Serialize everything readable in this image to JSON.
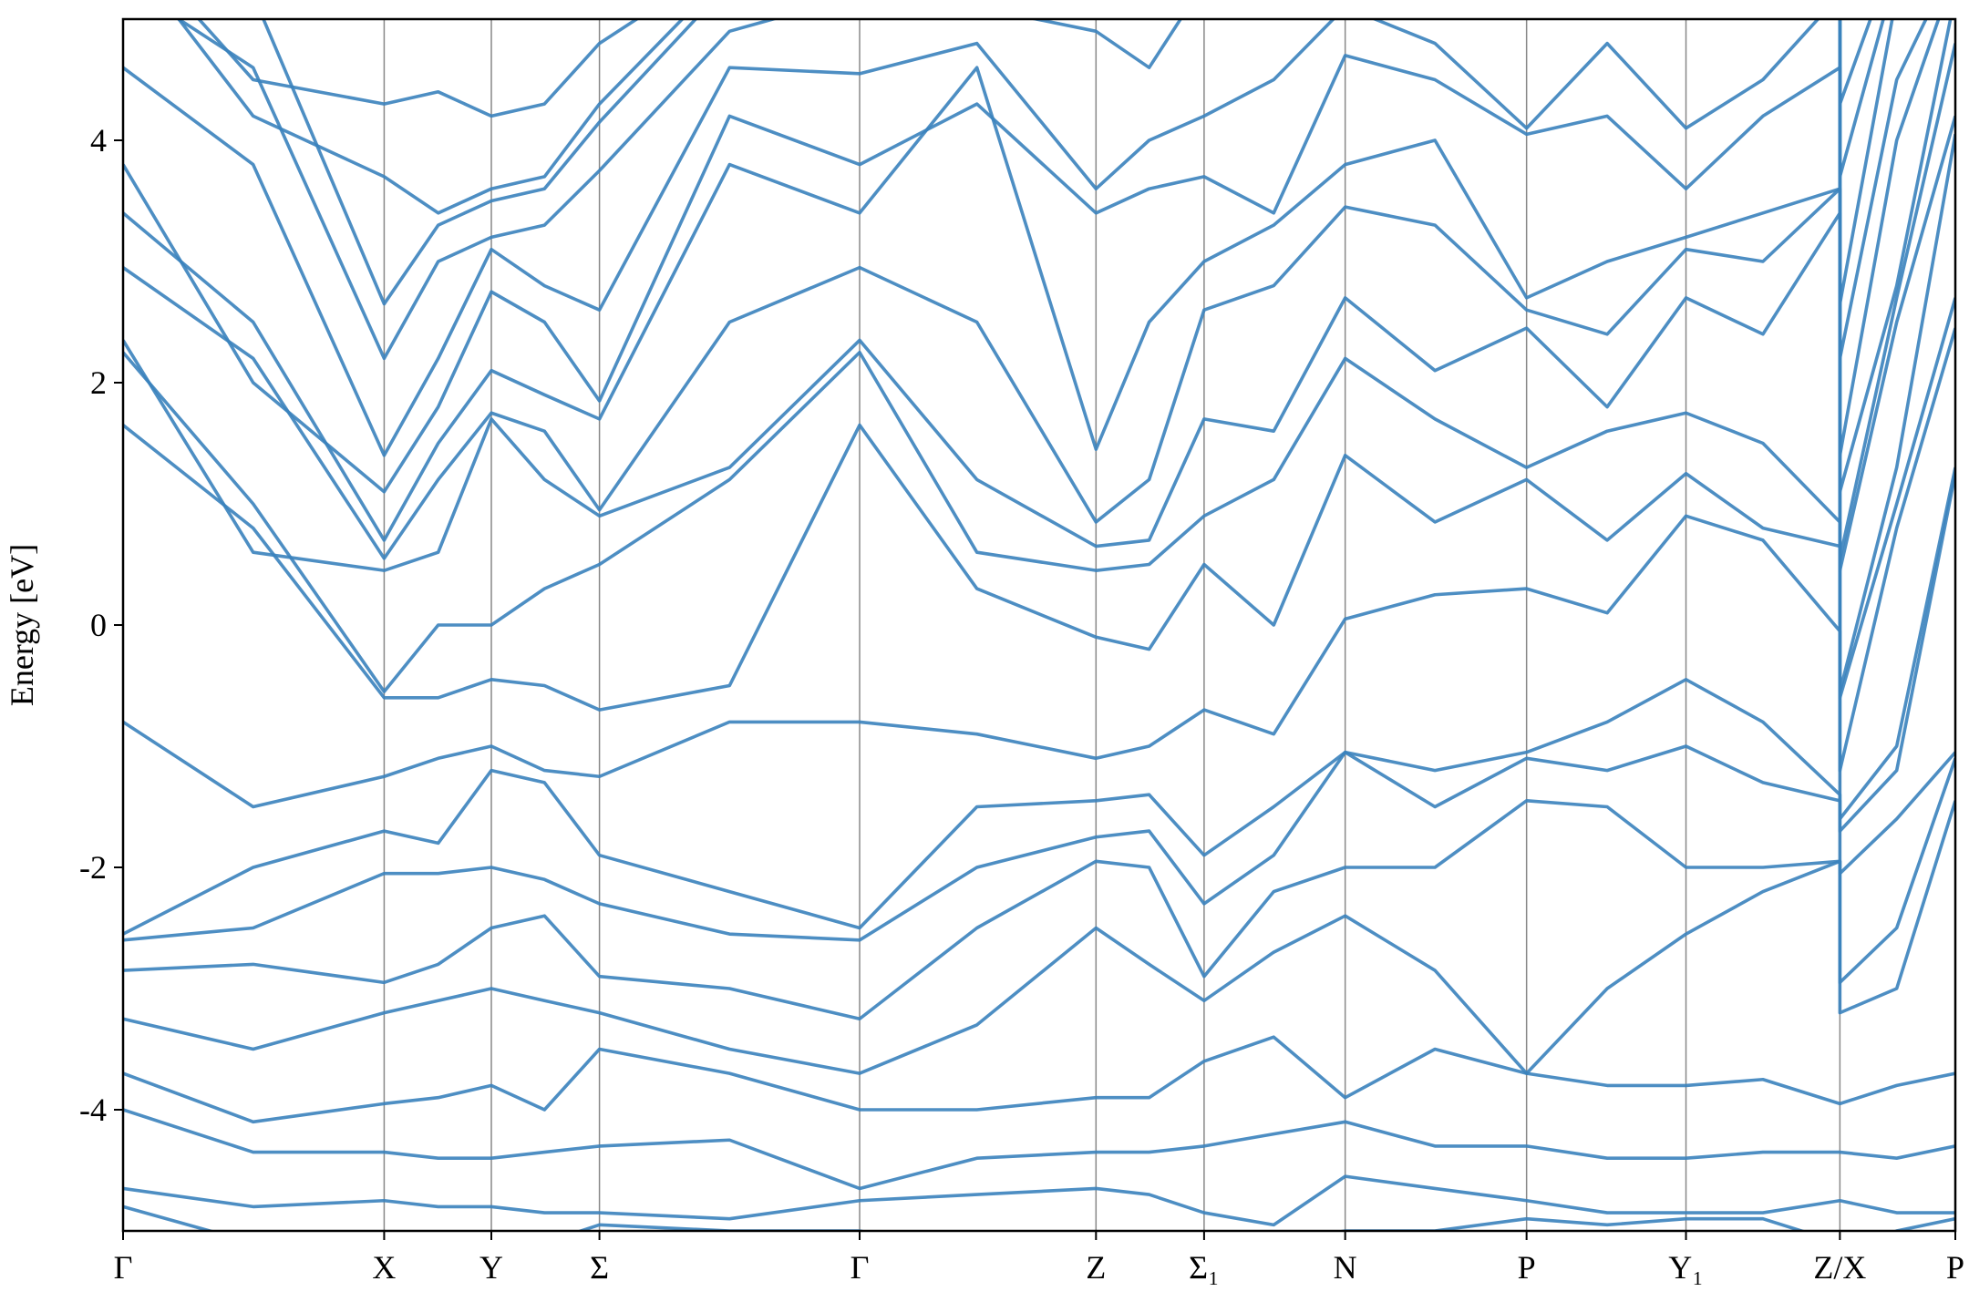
{
  "chart_data": {
    "type": "line",
    "ylabel": "Energy [eV]",
    "color": "#3a82bd",
    "xlim": [
      0,
      1
    ],
    "ylim": [
      -5,
      5
    ],
    "yticks": [
      -4,
      -2,
      0,
      2,
      4
    ],
    "xticks": [
      {
        "value": 0,
        "label": "Γ"
      },
      {
        "value": 0.1425,
        "label": "X"
      },
      {
        "value": 0.201,
        "label": "Y"
      },
      {
        "value": 0.26,
        "label": "Σ"
      },
      {
        "value": 0.402,
        "label": "Γ"
      },
      {
        "value": 0.531,
        "label": "Z"
      },
      {
        "value": 0.59,
        "label": "Σ₁"
      },
      {
        "value": 0.667,
        "label": "N"
      },
      {
        "value": 0.766,
        "label": "P"
      },
      {
        "value": 0.853,
        "label": "Y₁"
      },
      {
        "value": 0.937,
        "label": "Z/X"
      },
      {
        "value": 1,
        "label": "P"
      }
    ],
    "grid": true,
    "x": [
      0,
      0.071,
      0.1425,
      0.172,
      0.201,
      0.23,
      0.26,
      0.331,
      0.402,
      0.466,
      0.531,
      0.56,
      0.59,
      0.628,
      0.667,
      0.716,
      0.766,
      0.81,
      0.853,
      0.895,
      0.937,
      0.937,
      0.968,
      1
    ],
    "series": [
      {
        "values": [
          -4.8,
          -5.1,
          -5.2,
          -5.3,
          -5.2,
          -5.1,
          -4.95,
          -5.0,
          -5.0,
          -5.2,
          -5.3,
          -5.2,
          -5.2,
          -5.1,
          -5.0,
          -5.0,
          -4.9,
          -4.95,
          -4.9,
          -4.9,
          -5.1,
          -5.2,
          -5.0,
          -4.9
        ]
      },
      {
        "values": [
          -4.65,
          -4.8,
          -4.75,
          -4.8,
          -4.8,
          -4.85,
          -4.85,
          -4.9,
          -4.75,
          -4.7,
          -4.65,
          -4.7,
          -4.85,
          -4.95,
          -4.55,
          -4.65,
          -4.75,
          -4.85,
          -4.85,
          -4.85,
          -4.75,
          -4.75,
          -4.85,
          -4.85
        ]
      },
      {
        "values": [
          -4.0,
          -4.35,
          -4.35,
          -4.4,
          -4.4,
          -4.35,
          -4.3,
          -4.25,
          -4.65,
          -4.4,
          -4.35,
          -4.35,
          -4.3,
          -4.2,
          -4.1,
          -4.3,
          -4.3,
          -4.4,
          -4.4,
          -4.35,
          -4.35,
          -4.35,
          -4.4,
          -4.3
        ]
      },
      {
        "values": [
          -3.7,
          -4.1,
          -3.95,
          -3.9,
          -3.8,
          -4.0,
          -3.5,
          -3.7,
          -4.0,
          -4.0,
          -3.9,
          -3.9,
          -3.6,
          -3.4,
          -3.9,
          -3.5,
          -3.7,
          -3.8,
          -3.8,
          -3.75,
          -3.95,
          -3.95,
          -3.8,
          -3.7
        ]
      },
      {
        "values": [
          -3.25,
          -3.5,
          -3.2,
          -3.1,
          -3.0,
          -3.1,
          -3.2,
          -3.5,
          -3.7,
          -3.3,
          -2.5,
          -2.8,
          -3.1,
          -2.7,
          -2.4,
          -2.85,
          -3.7,
          -3.0,
          -2.55,
          -2.2,
          -1.95,
          -3.2,
          -3.0,
          -1.45
        ]
      },
      {
        "values": [
          -2.85,
          -2.8,
          -2.95,
          -2.8,
          -2.5,
          -2.4,
          -2.9,
          -3.0,
          -3.25,
          -2.5,
          -1.95,
          -2.0,
          -2.9,
          -2.2,
          -2.0,
          -2.0,
          -1.45,
          -1.5,
          -2.0,
          -2.0,
          -1.95,
          -2.95,
          -2.5,
          -1.1
        ]
      },
      {
        "values": [
          -2.6,
          -2.5,
          -2.05,
          -2.05,
          -2.0,
          -2.1,
          -2.3,
          -2.55,
          -2.6,
          -2.0,
          -1.75,
          -1.7,
          -2.3,
          -1.9,
          -1.05,
          -1.5,
          -1.1,
          -1.2,
          -1.0,
          -1.3,
          -1.45,
          -2.05,
          -1.6,
          -1.05
        ]
      },
      {
        "values": [
          -2.55,
          -2.0,
          -1.7,
          -1.8,
          -1.2,
          -1.3,
          -1.9,
          -2.2,
          -2.5,
          -1.5,
          -1.45,
          -1.4,
          -1.9,
          -1.5,
          -1.05,
          -1.2,
          -1.05,
          -0.8,
          -0.45,
          -0.8,
          -1.4,
          -1.7,
          -1.2,
          1.25
        ]
      },
      {
        "values": [
          -0.8,
          -1.5,
          -1.25,
          -1.1,
          -1.0,
          -1.2,
          -1.25,
          -0.8,
          -0.8,
          -0.9,
          -1.1,
          -1.0,
          -0.7,
          -0.9,
          0.05,
          0.25,
          0.3,
          0.1,
          0.9,
          0.7,
          -0.05,
          -1.6,
          -1.0,
          1.3
        ]
      },
      {
        "values": [
          1.65,
          0.8,
          -0.6,
          -0.6,
          -0.45,
          -0.5,
          -0.7,
          -0.5,
          1.65,
          0.3,
          -0.1,
          -0.2,
          0.5,
          0.0,
          1.4,
          0.85,
          1.2,
          0.7,
          1.25,
          0.8,
          0.65,
          -1.2,
          0.8,
          2.45
        ]
      },
      {
        "values": [
          2.25,
          1.0,
          -0.55,
          0.0,
          0.0,
          0.3,
          0.5,
          1.2,
          2.25,
          0.6,
          0.45,
          0.5,
          0.9,
          1.2,
          2.2,
          1.7,
          1.3,
          1.6,
          1.75,
          1.5,
          0.85,
          -0.6,
          1.0,
          2.7
        ]
      },
      {
        "values": [
          2.35,
          0.6,
          0.45,
          0.6,
          1.7,
          1.2,
          0.9,
          1.3,
          2.35,
          1.2,
          0.65,
          0.7,
          1.7,
          1.6,
          2.7,
          2.1,
          2.45,
          1.8,
          2.7,
          2.4,
          3.4,
          -0.55,
          1.3,
          4.05
        ]
      },
      {
        "values": [
          2.95,
          2.2,
          0.55,
          1.2,
          1.75,
          1.6,
          0.95,
          2.5,
          2.95,
          2.5,
          0.85,
          1.2,
          2.6,
          2.8,
          3.45,
          3.3,
          2.6,
          2.4,
          3.1,
          3.0,
          3.6,
          0.45,
          2.5,
          4.2
        ]
      },
      {
        "values": [
          3.4,
          2.5,
          0.7,
          1.5,
          2.1,
          1.9,
          1.7,
          3.8,
          3.4,
          4.6,
          1.45,
          2.5,
          3.0,
          3.3,
          3.8,
          4.0,
          2.7,
          3.0,
          3.2,
          3.4,
          3.6,
          0.55,
          2.7,
          4.8
        ]
      },
      {
        "values": [
          3.8,
          2.0,
          1.1,
          1.8,
          2.75,
          2.5,
          1.85,
          4.2,
          3.8,
          4.3,
          3.4,
          3.6,
          3.7,
          3.4,
          4.7,
          4.5,
          4.05,
          4.2,
          3.6,
          4.2,
          4.6,
          1.1,
          2.8,
          5.2
        ]
      },
      {
        "values": [
          4.6,
          3.8,
          1.4,
          2.2,
          3.1,
          2.8,
          2.6,
          4.6,
          4.55,
          4.8,
          3.6,
          4.0,
          4.2,
          4.5,
          5.1,
          4.8,
          4.1,
          4.8,
          4.1,
          4.5,
          5.2,
          1.4,
          4.0,
          5.4
        ]
      },
      {
        "values": [
          5.3,
          4.6,
          2.2,
          3.0,
          3.2,
          3.3,
          3.75,
          4.9,
          5.2,
          5.1,
          4.9,
          4.6,
          5.3,
          5.2,
          5.4,
          5.3,
          5.3,
          5.3,
          5.2,
          5.3,
          5.4,
          2.2,
          4.5,
          5.5
        ]
      },
      {
        "values": [
          5.5,
          5.2,
          2.65,
          3.3,
          3.5,
          3.6,
          4.15,
          5.3,
          5.4,
          5.4,
          5.2,
          5.3,
          5.5,
          5.5,
          5.5,
          5.5,
          5.5,
          5.5,
          5.4,
          5.5,
          5.5,
          2.65,
          5.2,
          5.6
        ]
      },
      {
        "values": [
          5.6,
          4.2,
          3.7,
          3.4,
          3.6,
          3.7,
          4.3,
          5.4,
          5.5,
          5.5,
          5.4,
          5.5,
          5.6,
          5.6,
          5.6,
          5.6,
          5.6,
          5.6,
          5.5,
          5.6,
          5.6,
          3.7,
          5.4,
          5.7
        ]
      },
      {
        "values": [
          5.7,
          4.5,
          4.3,
          4.4,
          4.2,
          4.3,
          4.8,
          5.5,
          5.6,
          5.6,
          5.5,
          5.6,
          5.7,
          5.7,
          5.7,
          5.7,
          5.7,
          5.7,
          5.6,
          5.7,
          5.7,
          4.3,
          5.6,
          5.8
        ]
      }
    ]
  }
}
